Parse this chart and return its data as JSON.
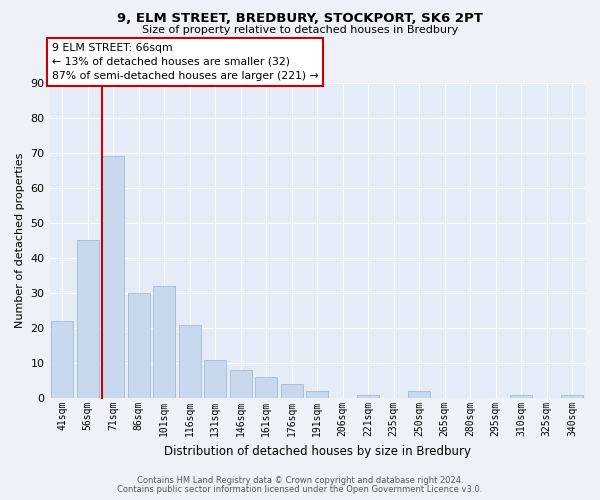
{
  "title": "9, ELM STREET, BREDBURY, STOCKPORT, SK6 2PT",
  "subtitle": "Size of property relative to detached houses in Bredbury",
  "xlabel": "Distribution of detached houses by size in Bredbury",
  "ylabel": "Number of detached properties",
  "bar_labels": [
    "41sqm",
    "56sqm",
    "71sqm",
    "86sqm",
    "101sqm",
    "116sqm",
    "131sqm",
    "146sqm",
    "161sqm",
    "176sqm",
    "191sqm",
    "206sqm",
    "221sqm",
    "235sqm",
    "250sqm",
    "265sqm",
    "280sqm",
    "295sqm",
    "310sqm",
    "325sqm",
    "340sqm"
  ],
  "bar_values": [
    22,
    45,
    69,
    30,
    32,
    21,
    11,
    8,
    6,
    4,
    2,
    0,
    1,
    0,
    2,
    0,
    0,
    0,
    1,
    0,
    1
  ],
  "bar_color": "#c8d9ee",
  "bar_edge_color": "#a8c0dc",
  "vline_color": "#cc0000",
  "ylim": [
    0,
    90
  ],
  "yticks": [
    0,
    10,
    20,
    30,
    40,
    50,
    60,
    70,
    80,
    90
  ],
  "annotation_title": "9 ELM STREET: 66sqm",
  "annotation_line1": "← 13% of detached houses are smaller (32)",
  "annotation_line2": "87% of semi-detached houses are larger (221) →",
  "annotation_box_color": "#ffffff",
  "annotation_box_edge": "#cc0000",
  "footer1": "Contains HM Land Registry data © Crown copyright and database right 2024.",
  "footer2": "Contains public sector information licensed under the Open Government Licence v3.0.",
  "bg_color": "#eef2f8",
  "plot_bg_color": "#e4ecf7"
}
